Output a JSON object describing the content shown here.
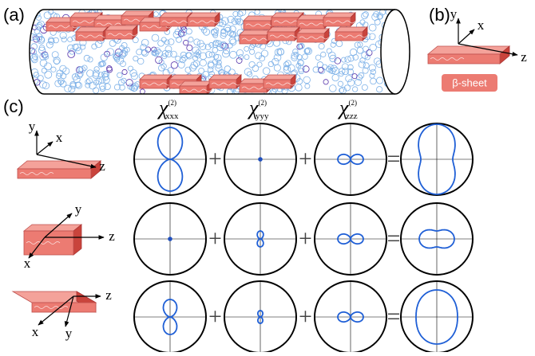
{
  "panels": {
    "a": "(a)",
    "b": "(b)",
    "c": "(c)"
  },
  "panel_b": {
    "axes": [
      "y",
      "x",
      "z"
    ],
    "label": "β-sheet"
  },
  "columns": [
    {
      "symbol": "χ",
      "superscript": "(2)",
      "subscript": "xxx"
    },
    {
      "symbol": "χ",
      "superscript": "(2)",
      "subscript": "yyy"
    },
    {
      "symbol": "χ",
      "superscript": "(2)",
      "subscript": "zzz"
    }
  ],
  "rows": [
    {
      "axes": [
        "y",
        "x",
        "z"
      ]
    },
    {
      "axes": [
        "y",
        "z",
        "x"
      ]
    },
    {
      "axes": [
        "z",
        "x",
        "y"
      ]
    }
  ],
  "operators": [
    "+",
    "+",
    "="
  ]
}
